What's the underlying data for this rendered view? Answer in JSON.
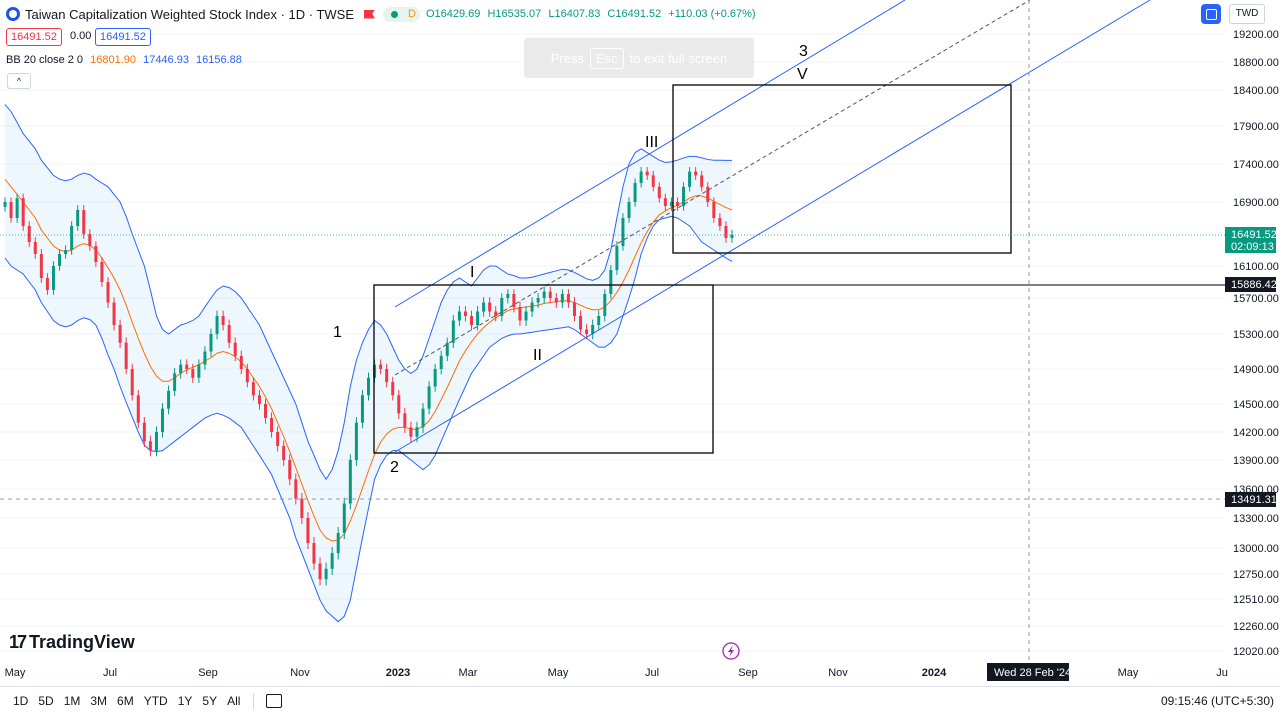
{
  "header": {
    "title": "Taiwan Capitalization Weighted Stock Index · 1D · TWSE",
    "status": "D",
    "ohlc": {
      "open": "O16429.69",
      "high": "H16535.07",
      "low": "L16407.83",
      "close": "C16491.52",
      "change": "+110.03 (+0.67%)"
    },
    "sell_price": "16491.52",
    "spread": "0.00",
    "buy_price": "16491.52"
  },
  "indicator": {
    "label": "BB 20 close 2 0",
    "basis": "16801.90",
    "upper": "17446.93",
    "lower": "16156.88"
  },
  "fullscreen_hint": {
    "prefix": "Press",
    "key": "Esc",
    "suffix": "to exit full screen"
  },
  "currency": "TWD",
  "brand": "TradingView",
  "range_buttons": [
    "1D",
    "5D",
    "1M",
    "3M",
    "6M",
    "YTD",
    "1Y",
    "5Y",
    "All"
  ],
  "clock": "09:15:46 (UTC+5:30)",
  "chart_data": {
    "type": "candlestick",
    "y_ticks": [
      19200,
      18800,
      18400,
      17900,
      17400,
      16900,
      16100,
      15700,
      15300,
      14900,
      14500,
      14200,
      13900,
      13600,
      13300,
      13000,
      12750,
      12510,
      12260,
      12020
    ],
    "x_ticks": [
      "May",
      "Jul",
      "Sep",
      "Nov",
      "2023",
      "Mar",
      "May",
      "Jul",
      "Sep",
      "Nov",
      "2024",
      "May",
      "Ju"
    ],
    "crosshair_date": "Wed 28 Feb '24",
    "price_labels": [
      {
        "value": "16491.52",
        "sub": "02:09:13",
        "type": "last"
      },
      {
        "value": "15886.42",
        "type": "hline"
      },
      {
        "value": "13491.31",
        "type": "crosshair"
      }
    ],
    "wave_labels": [
      "1",
      "2",
      "I",
      "II",
      "III",
      "V",
      "3"
    ],
    "series": {
      "close": [
        16900,
        16700,
        16950,
        16600,
        16400,
        16250,
        15950,
        15800,
        16100,
        16250,
        16300,
        16600,
        16800,
        16500,
        16350,
        16150,
        15900,
        15650,
        15400,
        15200,
        14900,
        14600,
        14300,
        14100,
        14000,
        14200,
        14450,
        14650,
        14850,
        14950,
        14900,
        14800,
        14950,
        15100,
        15300,
        15500,
        15400,
        15200,
        15050,
        14900,
        14750,
        14600,
        14500,
        14350,
        14200,
        14050,
        13900,
        13700,
        13500,
        13300,
        13050,
        12850,
        12700,
        12800,
        12950,
        13150,
        13450,
        13900,
        14300,
        14600,
        14800,
        14950,
        14900,
        14750,
        14600,
        14400,
        14250,
        14150,
        14250,
        14450,
        14700,
        14900,
        15050,
        15200,
        15450,
        15550,
        15500,
        15400,
        15550,
        15650,
        15550,
        15500,
        15700,
        15750,
        15600,
        15450,
        15550,
        15650,
        15700,
        15780,
        15700,
        15650,
        15750,
        15650,
        15500,
        15350,
        15300,
        15400,
        15500,
        15750,
        16050,
        16350,
        16700,
        16900,
        17150,
        17300,
        17250,
        17100,
        16950,
        16850,
        16900,
        16850,
        17100,
        17300,
        17250,
        17100,
        16900,
        16700,
        16600,
        16450,
        16491.52
      ],
      "basis": [
        17200,
        17100,
        17000,
        16900,
        16800,
        16700,
        16550,
        16450,
        16350,
        16300,
        16280,
        16300,
        16350,
        16380,
        16360,
        16300,
        16200,
        16080,
        15950,
        15800,
        15620,
        15430,
        15250,
        15080,
        14930,
        14820,
        14760,
        14760,
        14800,
        14850,
        14890,
        14920,
        14950,
        14990,
        15030,
        15080,
        15100,
        15080,
        15040,
        14980,
        14900,
        14800,
        14700,
        14580,
        14450,
        14300,
        14150,
        13990,
        13820,
        13650,
        13480,
        13320,
        13180,
        13100,
        13070,
        13080,
        13140,
        13270,
        13430,
        13610,
        13790,
        13960,
        14090,
        14180,
        14230,
        14250,
        14250,
        14230,
        14230,
        14260,
        14320,
        14420,
        14550,
        14690,
        14840,
        14990,
        15110,
        15210,
        15300,
        15370,
        15430,
        15480,
        15520,
        15560,
        15580,
        15590,
        15600,
        15610,
        15620,
        15640,
        15650,
        15660,
        15670,
        15670,
        15650,
        15620,
        15590,
        15570,
        15570,
        15600,
        15670,
        15770,
        15900,
        16050,
        16220,
        16390,
        16530,
        16650,
        16740,
        16790,
        16830,
        16860,
        16900,
        16950,
        16980,
        16980,
        16950,
        16910,
        16870,
        16830,
        16801.9
      ],
      "upper": [
        18200,
        18100,
        17950,
        17800,
        17700,
        17600,
        17450,
        17350,
        17250,
        17200,
        17180,
        17200,
        17250,
        17280,
        17260,
        17200,
        17150,
        17100,
        17000,
        16900,
        16720,
        16500,
        16300,
        16100,
        15800,
        15500,
        15350,
        15300,
        15350,
        15400,
        15420,
        15450,
        15500,
        15600,
        15700,
        15800,
        15850,
        15830,
        15780,
        15700,
        15600,
        15500,
        15400,
        15250,
        15100,
        14950,
        14800,
        14650,
        14500,
        14300,
        14100,
        13950,
        13800,
        13700,
        13800,
        14000,
        14300,
        14700,
        15000,
        15200,
        15350,
        15450,
        15400,
        15300,
        15150,
        15000,
        14900,
        14850,
        14900,
        15050,
        15250,
        15450,
        15650,
        15800,
        15900,
        15950,
        15900,
        15850,
        15950,
        16050,
        16100,
        16100,
        16050,
        16000,
        15980,
        15950,
        15950,
        15960,
        15980,
        16000,
        16020,
        16040,
        16060,
        16050,
        16020,
        15980,
        15940,
        15920,
        15950,
        16050,
        16300,
        16700,
        17100,
        17400,
        17550,
        17600,
        17550,
        17500,
        17450,
        17420,
        17430,
        17450,
        17480,
        17500,
        17500,
        17480,
        17460,
        17450,
        17450,
        17446.93,
        17446.93
      ],
      "lower": [
        16200,
        16100,
        16050,
        16000,
        15900,
        15800,
        15650,
        15550,
        15450,
        15400,
        15380,
        15400,
        15450,
        15480,
        15460,
        15400,
        15250,
        15060,
        14900,
        14700,
        14520,
        14360,
        14200,
        14060,
        14000,
        13990,
        14000,
        14050,
        14100,
        14150,
        14200,
        14250,
        14300,
        14350,
        14380,
        14400,
        14380,
        14350,
        14300,
        14250,
        14150,
        14050,
        13950,
        13850,
        13750,
        13600,
        13450,
        13300,
        13100,
        12950,
        12800,
        12650,
        12500,
        12400,
        12350,
        12300,
        12350,
        12500,
        12800,
        13100,
        13400,
        13700,
        13850,
        13950,
        14000,
        14000,
        13950,
        13900,
        13850,
        13800,
        13850,
        13950,
        14100,
        14250,
        14400,
        14550,
        14700,
        14850,
        14950,
        15050,
        15150,
        15200,
        15250,
        15280,
        15300,
        15300,
        15310,
        15320,
        15330,
        15340,
        15350,
        15360,
        15370,
        15380,
        15350,
        15300,
        15250,
        15200,
        15150,
        15150,
        15200,
        15300,
        15500,
        15700,
        15950,
        16250,
        16450,
        16600,
        16680,
        16700,
        16720,
        16700,
        16650,
        16600,
        16500,
        16400,
        16350,
        16300,
        16250,
        16200,
        16156.88
      ]
    }
  }
}
